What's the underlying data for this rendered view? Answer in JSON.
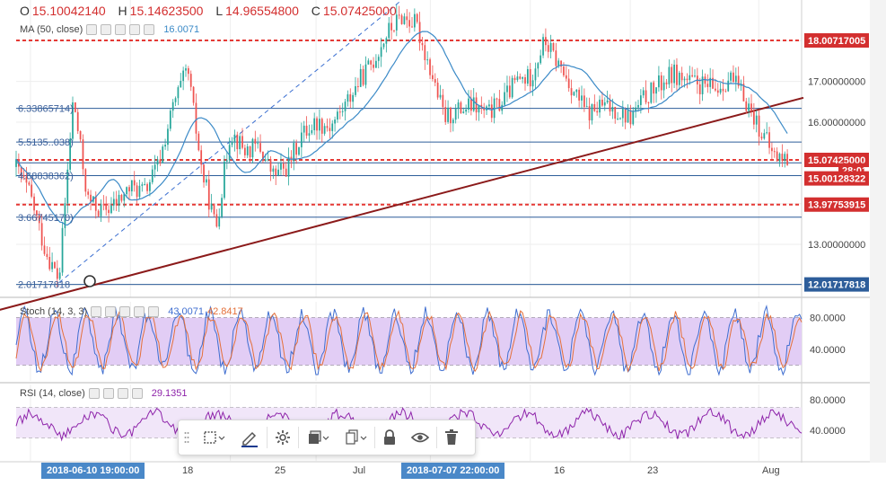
{
  "ohlc": {
    "o_label": "O",
    "o": "15.10042140",
    "h_label": "H",
    "h": "15.14623500",
    "l_label": "L",
    "l": "14.96554800",
    "c_label": "C",
    "c": "15.07425000"
  },
  "ma": {
    "label": "MA (50, close)",
    "value": "16.0071"
  },
  "stoch": {
    "label": "Stoch (14, 3, 3)",
    "value1": "43.0071",
    "value2": "42.8417"
  },
  "rsi": {
    "label": "RSI (14, close)",
    "value": "29.1351"
  },
  "price_axis": [
    "18.00000000",
    "17.00000000",
    "16.00000000",
    "15.00000000",
    "14.00000000",
    "13.00000000"
  ],
  "price_tags": {
    "level_18": "18.00717005",
    "current": "15.07425000",
    "countdown": "28:01",
    "level_15": "15.00128322",
    "level_14": "13.97753915",
    "level_12": "12.01717818"
  },
  "left_levels": [
    "6.33865714)",
    "5.5135..038)",
    "4.68838362)",
    "3.66745170)",
    "2.01717818"
  ],
  "stoch_axis": [
    "80.0000",
    "40.0000"
  ],
  "rsi_axis": [
    "80.0000",
    "40.0000"
  ],
  "x_axis": {
    "ticks": [
      "18",
      "25",
      "Jul",
      "16",
      "23",
      "Aug"
    ],
    "highlight_left": "2018-06-10 19:00:00",
    "highlight_right": "2018-07-07 22:00:00"
  },
  "toolbar": {
    "items": [
      "drawing-template-icon",
      "pencil-icon",
      "settings-icon",
      "layers-icon",
      "clone-icon",
      "lock-icon",
      "eye-icon",
      "trash-icon"
    ]
  },
  "colors": {
    "candle_up": "#26a69a",
    "candle_down": "#ef5350",
    "ma_line": "#3b8ac7",
    "trend_line": "#8b1a1a",
    "dashed_red": "#e53935",
    "blue_level": "#2d5d9a",
    "stoch_fill": "#e2cdf5",
    "rsi_fill": "#f1e6f9",
    "stoch_k": "#3f6ed0",
    "stoch_d": "#e4703a",
    "rsi_line": "#8e24aa"
  },
  "chart_data": {
    "type": "candlestick",
    "ylim": [
      11.7,
      19.0
    ],
    "x_range": [
      "2018-06-10",
      "2018-08-04"
    ],
    "price_series": {
      "points": [
        [
          "2018-06-10",
          14.9
        ],
        [
          "2018-06-11",
          14.2
        ],
        [
          "2018-06-12",
          12.9
        ],
        [
          "2018-06-13",
          12.1
        ],
        [
          "2018-06-14",
          16.6
        ],
        [
          "2018-06-15",
          14.1
        ],
        [
          "2018-06-16",
          13.8
        ],
        [
          "2018-06-17",
          14.0
        ],
        [
          "2018-06-18",
          14.4
        ],
        [
          "2018-06-19",
          14.3
        ],
        [
          "2018-06-20",
          15.0
        ],
        [
          "2018-06-21",
          16.4
        ],
        [
          "2018-06-22",
          17.3
        ],
        [
          "2018-06-23",
          14.8
        ],
        [
          "2018-06-24",
          13.4
        ],
        [
          "2018-06-25",
          15.8
        ],
        [
          "2018-06-26",
          15.3
        ],
        [
          "2018-06-27",
          15.4
        ],
        [
          "2018-06-28",
          14.7
        ],
        [
          "2018-06-29",
          14.9
        ],
        [
          "2018-06-30",
          15.7
        ],
        [
          "2018-07-01",
          16.0
        ],
        [
          "2018-07-02",
          15.9
        ],
        [
          "2018-07-03",
          16.4
        ],
        [
          "2018-07-04",
          17.0
        ],
        [
          "2018-07-05",
          17.5
        ],
        [
          "2018-07-06",
          18.2
        ],
        [
          "2018-07-07",
          18.6
        ],
        [
          "2018-07-08",
          18.4
        ],
        [
          "2018-07-09",
          17.3
        ],
        [
          "2018-07-10",
          16.1
        ],
        [
          "2018-07-11",
          16.3
        ],
        [
          "2018-07-12",
          16.4
        ],
        [
          "2018-07-13",
          16.2
        ],
        [
          "2018-07-14",
          16.5
        ],
        [
          "2018-07-15",
          17.0
        ],
        [
          "2018-07-16",
          17.1
        ],
        [
          "2018-07-17",
          18.0
        ],
        [
          "2018-07-18",
          17.4
        ],
        [
          "2018-07-19",
          16.8
        ],
        [
          "2018-07-20",
          16.2
        ],
        [
          "2018-07-21",
          16.4
        ],
        [
          "2018-07-22",
          16.3
        ],
        [
          "2018-07-23",
          16.1
        ],
        [
          "2018-07-24",
          16.6
        ],
        [
          "2018-07-25",
          16.9
        ],
        [
          "2018-07-26",
          17.2
        ],
        [
          "2018-07-27",
          17.0
        ],
        [
          "2018-07-28",
          16.9
        ],
        [
          "2018-07-29",
          16.8
        ],
        [
          "2018-07-30",
          17.1
        ],
        [
          "2018-07-31",
          16.6
        ],
        [
          "2018-08-01",
          15.9
        ],
        [
          "2018-08-02",
          15.2
        ],
        [
          "2018-08-03",
          15.07
        ]
      ]
    },
    "horizontal_levels": {
      "dashed_red": [
        18.00717005,
        15.07425,
        13.97753915
      ],
      "solid_blue": [
        16.33865714,
        15.51352038,
        15.00128322,
        14.68838362,
        13.6674517,
        12.01717818
      ]
    },
    "trend_line": {
      "from": [
        "2018-06-10",
        11.62
      ],
      "to": [
        "2018-08-04",
        16.6
      ]
    },
    "dashed_channel": {
      "from": [
        "2018-06-13",
        12.06
      ],
      "to": [
        "2018-07-07",
        19.0
      ]
    },
    "stoch": {
      "ylim": [
        0,
        100
      ],
      "bands": [
        20,
        80
      ],
      "k": 43.0071,
      "d": 42.8417
    },
    "rsi": {
      "ylim": [
        0,
        100
      ],
      "bands": [
        30,
        70
      ],
      "value": 29.1351
    }
  }
}
